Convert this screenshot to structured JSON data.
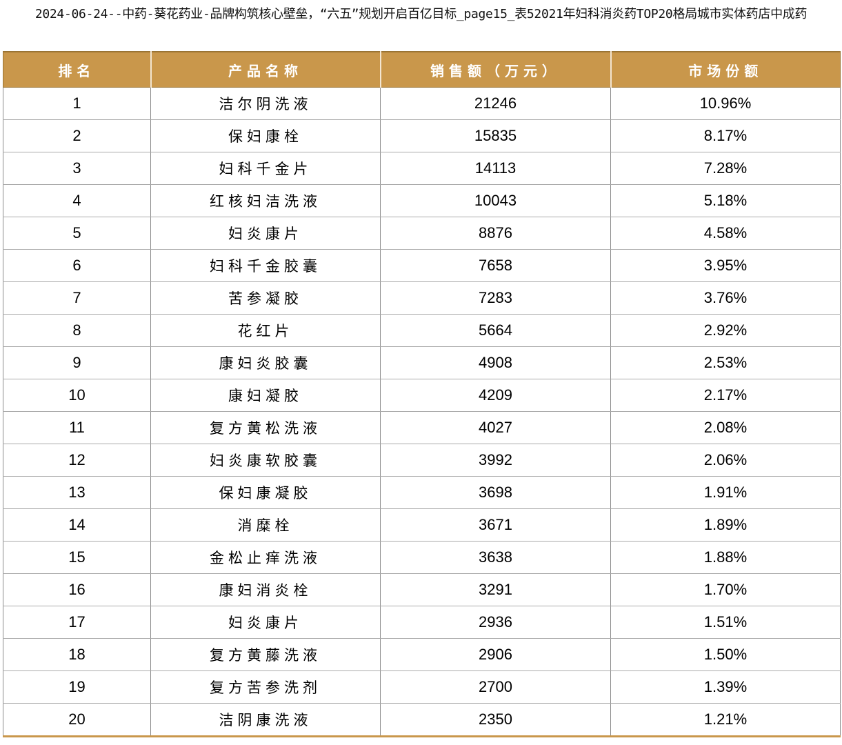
{
  "caption": "2024-06-24--中药-葵花药业-品牌构筑核心壁垒，“六五”规划开启百亿目标_page15_表52021年妇科消炎药TOP20格局城市实体药店中成药",
  "columns": [
    "排名",
    "产品名称",
    "销售额（万元）",
    "市场份额"
  ],
  "rows": [
    {
      "rank": "1",
      "name": "洁尔阴洗液",
      "sales": "21246",
      "share": "10.96%"
    },
    {
      "rank": "2",
      "name": "保妇康栓",
      "sales": "15835",
      "share": "8.17%"
    },
    {
      "rank": "3",
      "name": "妇科千金片",
      "sales": "14113",
      "share": "7.28%"
    },
    {
      "rank": "4",
      "name": "红核妇洁洗液",
      "sales": "10043",
      "share": "5.18%"
    },
    {
      "rank": "5",
      "name": "妇炎康片",
      "sales": "8876",
      "share": "4.58%"
    },
    {
      "rank": "6",
      "name": "妇科千金胶囊",
      "sales": "7658",
      "share": "3.95%"
    },
    {
      "rank": "7",
      "name": "苦参凝胶",
      "sales": "7283",
      "share": "3.76%"
    },
    {
      "rank": "8",
      "name": "花红片",
      "sales": "5664",
      "share": "2.92%"
    },
    {
      "rank": "9",
      "name": "康妇炎胶囊",
      "sales": "4908",
      "share": "2.53%"
    },
    {
      "rank": "10",
      "name": "康妇凝胶",
      "sales": "4209",
      "share": "2.17%"
    },
    {
      "rank": "11",
      "name": "复方黄松洗液",
      "sales": "4027",
      "share": "2.08%"
    },
    {
      "rank": "12",
      "name": "妇炎康软胶囊",
      "sales": "3992",
      "share": "2.06%"
    },
    {
      "rank": "13",
      "name": "保妇康凝胶",
      "sales": "3698",
      "share": "1.91%"
    },
    {
      "rank": "14",
      "name": "消糜栓",
      "sales": "3671",
      "share": "1.89%"
    },
    {
      "rank": "15",
      "name": "金松止痒洗液",
      "sales": "3638",
      "share": "1.88%"
    },
    {
      "rank": "16",
      "name": "康妇消炎栓",
      "sales": "3291",
      "share": "1.70%"
    },
    {
      "rank": "17",
      "name": "妇炎康片",
      "sales": "2936",
      "share": "1.51%"
    },
    {
      "rank": "18",
      "name": "复方黄藤洗液",
      "sales": "2906",
      "share": "1.50%"
    },
    {
      "rank": "19",
      "name": "复方苦参洗剂",
      "sales": "2700",
      "share": "1.39%"
    },
    {
      "rank": "20",
      "name": "洁阴康洗液",
      "sales": "2350",
      "share": "1.21%"
    }
  ]
}
